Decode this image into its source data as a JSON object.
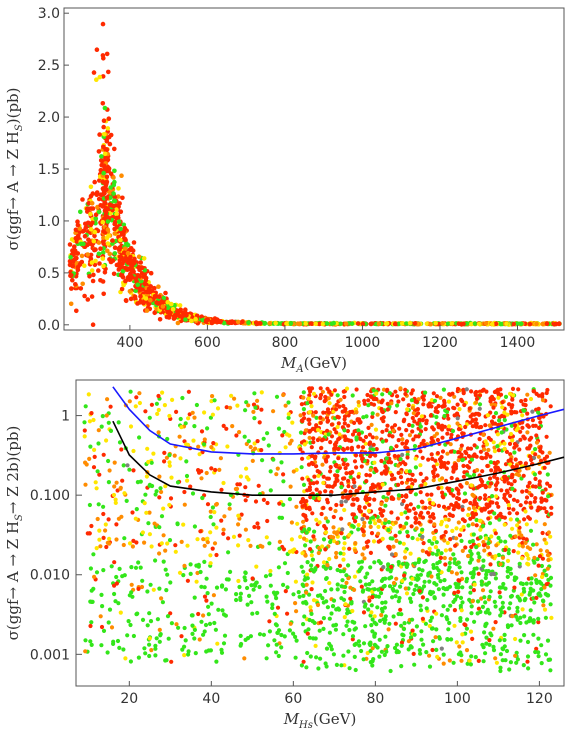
{
  "chart_data": [
    {
      "type": "scatter",
      "title": "",
      "xlabel_main": "M",
      "xlabel_sub": "A",
      "xlabel_rest": "(GeV)",
      "ylabel": "σ(ggf→ A → Z H",
      "ylabel_sub": "S",
      "ylabel_rest": ")(pb)",
      "xlim": [
        230,
        1520
      ],
      "ylim": [
        -0.05,
        3.05
      ],
      "x_ticks": [
        400,
        600,
        800,
        1000,
        1200,
        1400
      ],
      "x_tick_labels": [
        "400",
        "600",
        "800",
        "1000",
        "1200",
        "1400"
      ],
      "y_ticks": [
        0.0,
        0.5,
        1.0,
        1.5,
        2.0,
        2.5,
        3.0
      ],
      "y_tick_labels": [
        "0.0",
        "0.5",
        "1.0",
        "1.5",
        "2.0",
        "2.5",
        "3.0"
      ],
      "point_colors": [
        "#ff2a00",
        "#ff8c00",
        "#ffe600",
        "#33e61a"
      ],
      "note": "dense scatter: cross section falls from ~1.0 pb at M_A≈340 GeV (peak ~2.9 pb) to ~0 by 800 GeV"
    },
    {
      "type": "scatter",
      "title": "",
      "xlabel_main": "M",
      "xlabel_sub": "Hs",
      "xlabel_rest": "(GeV)",
      "ylabel": "σ(ggf→ A → Z H",
      "ylabel_sub": "S",
      "ylabel_rest": "→ Z 2b)(pb)",
      "log_y": true,
      "xlim": [
        7,
        126
      ],
      "ylim": [
        0.0004,
        2.8
      ],
      "x_ticks": [
        20,
        40,
        60,
        80,
        100,
        120
      ],
      "x_tick_labels": [
        "20",
        "40",
        "60",
        "80",
        "100",
        "120"
      ],
      "y_ticks": [
        0.001,
        0.01,
        0.1,
        1
      ],
      "y_tick_labels": [
        "0.001",
        "0.010",
        "0.100",
        "1"
      ],
      "point_colors": [
        "#ff2a00",
        "#ff8c00",
        "#ffe600",
        "#33e61a",
        "#808080"
      ],
      "series": [
        {
          "line_color": "#1a1aff",
          "x": [
            16,
            20,
            25,
            30,
            40,
            50,
            60,
            70,
            80,
            90,
            100,
            110,
            120,
            126
          ],
          "y": [
            2.3,
            1.2,
            0.65,
            0.44,
            0.35,
            0.33,
            0.33,
            0.34,
            0.34,
            0.38,
            0.52,
            0.72,
            1.0,
            1.2
          ]
        },
        {
          "line_color": "#000000",
          "x": [
            16,
            20,
            25,
            30,
            40,
            50,
            60,
            70,
            80,
            90,
            100,
            110,
            120,
            126
          ],
          "y": [
            0.85,
            0.32,
            0.18,
            0.13,
            0.11,
            0.1,
            0.1,
            0.1,
            0.11,
            0.12,
            0.15,
            0.19,
            0.25,
            0.3
          ]
        }
      ]
    }
  ]
}
